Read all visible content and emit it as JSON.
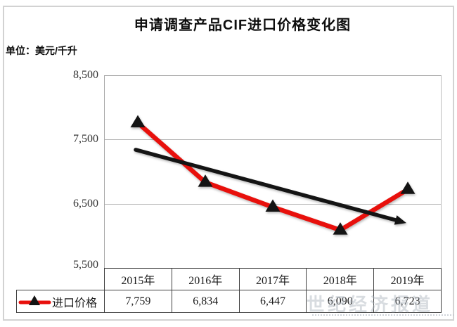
{
  "title": "申请调查产品CIF进口价格变化图",
  "unit_label": "单位：美元/千升",
  "watermark": "世纪经济报道",
  "colors": {
    "series_red": "#e8100c",
    "trend_black": "#141414",
    "marker_black": "#141414",
    "gridline_gray": "#b9b9b9",
    "table_border": "#3f3f3f"
  },
  "chart_data": {
    "type": "line",
    "title": "申请调查产品CIF进口价格变化图",
    "unit": "美元/千升",
    "categories": [
      "2015年",
      "2016年",
      "2017年",
      "2018年",
      "2019年"
    ],
    "series": [
      {
        "name": "进口价格",
        "values": [
          7759,
          6834,
          6447,
          6090,
          6723
        ],
        "color": "#e8100c",
        "marker": "black-triangle"
      }
    ],
    "trend_line": {
      "style": "straight-arrow",
      "color": "#141414",
      "start_value": 7340,
      "end_value": 6200
    },
    "ylim": [
      5500,
      8500
    ],
    "yticks": [
      "8,500",
      "7,500",
      "6,500",
      "5,500"
    ],
    "grid": true,
    "legend_position": "bottom-left"
  },
  "table": {
    "legend_label": "进口价格",
    "headers": [
      "2015年",
      "2016年",
      "2017年",
      "2018年",
      "2019年"
    ],
    "values": [
      "7,759",
      "6,834",
      "6,447",
      "6,090",
      "6,723"
    ]
  }
}
